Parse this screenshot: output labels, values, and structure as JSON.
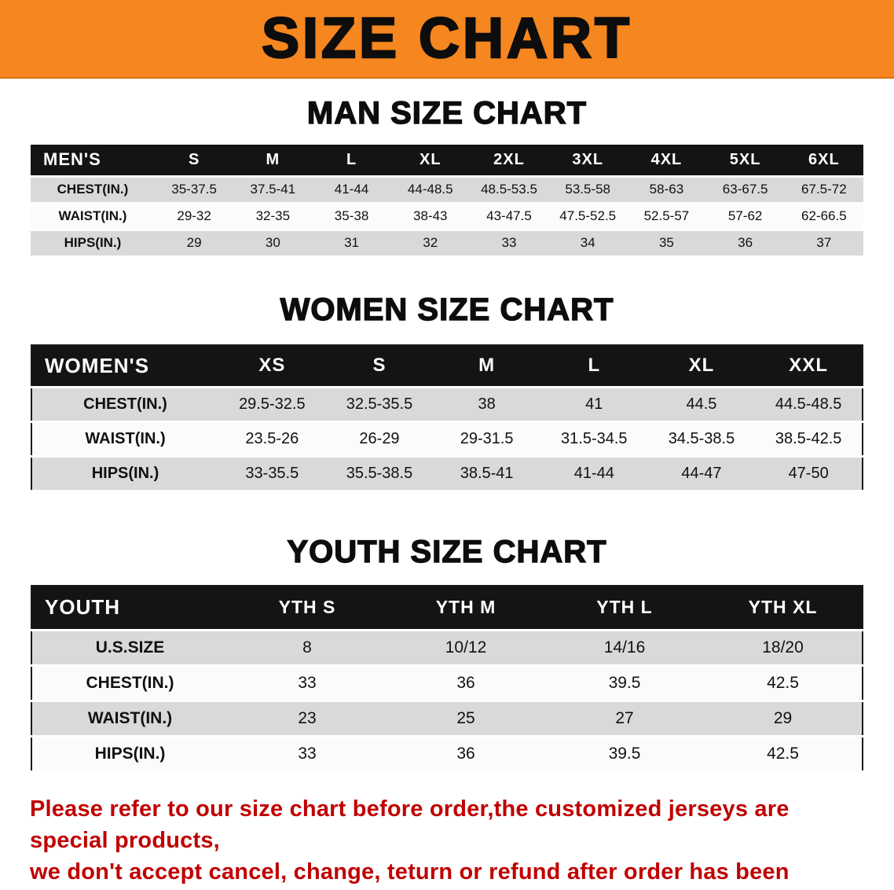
{
  "banner": {
    "title": "SIZE CHART",
    "bg_color": "#F6861F",
    "text_color": "#0D0D0D"
  },
  "sections": {
    "men": {
      "heading": "MAN SIZE CHART",
      "table": {
        "header": [
          "MEN'S",
          "S",
          "M",
          "L",
          "XL",
          "2XL",
          "3XL",
          "4XL",
          "5XL",
          "6XL"
        ],
        "rows": [
          [
            "CHEST(IN.)",
            "35-37.5",
            "37.5-41",
            "41-44",
            "44-48.5",
            "48.5-53.5",
            "53.5-58",
            "58-63",
            "63-67.5",
            "67.5-72"
          ],
          [
            "WAIST(IN.)",
            "29-32",
            "32-35",
            "35-38",
            "38-43",
            "43-47.5",
            "47.5-52.5",
            "52.5-57",
            "57-62",
            "62-66.5"
          ],
          [
            "HIPS(IN.)",
            "29",
            "30",
            "31",
            "32",
            "33",
            "34",
            "35",
            "36",
            "37"
          ]
        ]
      }
    },
    "women": {
      "heading": "WOMEN SIZE CHART",
      "table": {
        "header": [
          "WOMEN'S",
          "XS",
          "S",
          "M",
          "L",
          "XL",
          "XXL"
        ],
        "rows": [
          [
            "CHEST(IN.)",
            "29.5-32.5",
            "32.5-35.5",
            "38",
            "41",
            "44.5",
            "44.5-48.5"
          ],
          [
            "WAIST(IN.)",
            "23.5-26",
            "26-29",
            "29-31.5",
            "31.5-34.5",
            "34.5-38.5",
            "38.5-42.5"
          ],
          [
            "HIPS(IN.)",
            "33-35.5",
            "35.5-38.5",
            "38.5-41",
            "41-44",
            "44-47",
            "47-50"
          ]
        ]
      }
    },
    "youth": {
      "heading": "YOUTH SIZE CHART",
      "table": {
        "header": [
          "YOUTH",
          "YTH S",
          "YTH M",
          "YTH L",
          "YTH XL"
        ],
        "rows": [
          [
            "U.S.SIZE",
            "8",
            "10/12",
            "14/16",
            "18/20"
          ],
          [
            "CHEST(IN.)",
            "33",
            "36",
            "39.5",
            "42.5"
          ],
          [
            "WAIST(IN.)",
            "23",
            "25",
            "27",
            "29"
          ],
          [
            "HIPS(IN.)",
            "33",
            "36",
            "39.5",
            "42.5"
          ]
        ]
      }
    }
  },
  "disclaimer": {
    "line1": "Please refer to our size chart before order,the customized jerseys are special products,",
    "line2": "we don't accept cancel, change, teturn or refund after order has been placed!",
    "color": "#C00000"
  },
  "colors": {
    "row_shade": "#D9D9D9",
    "header_bg": "#141414"
  }
}
